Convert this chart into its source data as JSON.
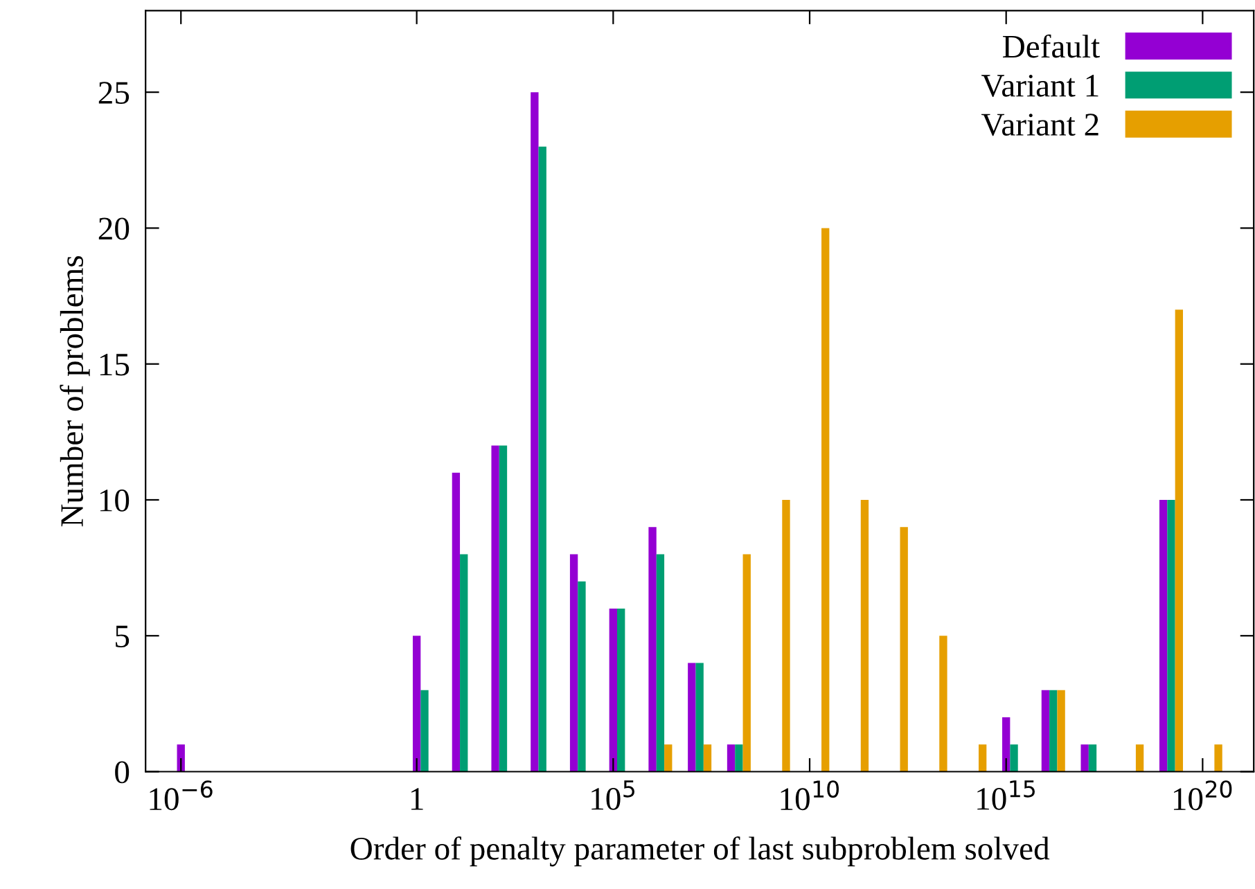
{
  "chart_data": {
    "type": "bar",
    "xlabel": "Order of penalty parameter of last subproblem solved",
    "ylabel": "Number of problems",
    "log": "x",
    "x": [
      1e-06,
      1,
      10.0,
      100.0,
      1000.0,
      10000.0,
      100000.0,
      1000000.0,
      10000000.0,
      100000000.0,
      1000000000.0,
      10000000000.0,
      100000000000.0,
      1000000000000.0,
      10000000000000.0,
      100000000000000.0,
      1000000000000000.0,
      1e+16,
      1e+17,
      1e+18,
      1e+19,
      1e+20
    ],
    "series": [
      {
        "name": "Default",
        "color": "#9400d3",
        "values": [
          1,
          5,
          11,
          12,
          25,
          8,
          6,
          9,
          4,
          1,
          null,
          null,
          null,
          null,
          null,
          null,
          2,
          3,
          1,
          null,
          10,
          null
        ]
      },
      {
        "name": "Variant 1",
        "color": "#009e73",
        "values": [
          null,
          3,
          8,
          12,
          23,
          7,
          6,
          8,
          4,
          1,
          null,
          null,
          null,
          null,
          null,
          null,
          1,
          3,
          1,
          null,
          10,
          null
        ]
      },
      {
        "name": "Variant 2",
        "color": "#e69f00",
        "values": [
          null,
          null,
          null,
          null,
          null,
          null,
          null,
          1,
          1,
          8,
          10,
          20,
          10,
          9,
          5,
          1,
          null,
          3,
          null,
          1,
          17,
          1
        ]
      }
    ],
    "xlim": [
      1.26e-07,
      2e+21
    ],
    "xticks": [
      {
        "value": 1e-06,
        "label": "10$^{−6}$"
      },
      1,
      {
        "value": 100000.0,
        "label": "10$^{5}$"
      },
      {
        "value": 10000000000.0,
        "label": "10$^{10}$"
      },
      {
        "value": 1000000000000000.0,
        "label": "10$^{15}$"
      },
      {
        "value": 1e+20,
        "label": "10$^{20}$"
      }
    ],
    "ylim": [
      0,
      28
    ],
    "yticks": [
      0,
      5,
      10,
      15,
      20,
      25
    ],
    "legend": "top right"
  }
}
